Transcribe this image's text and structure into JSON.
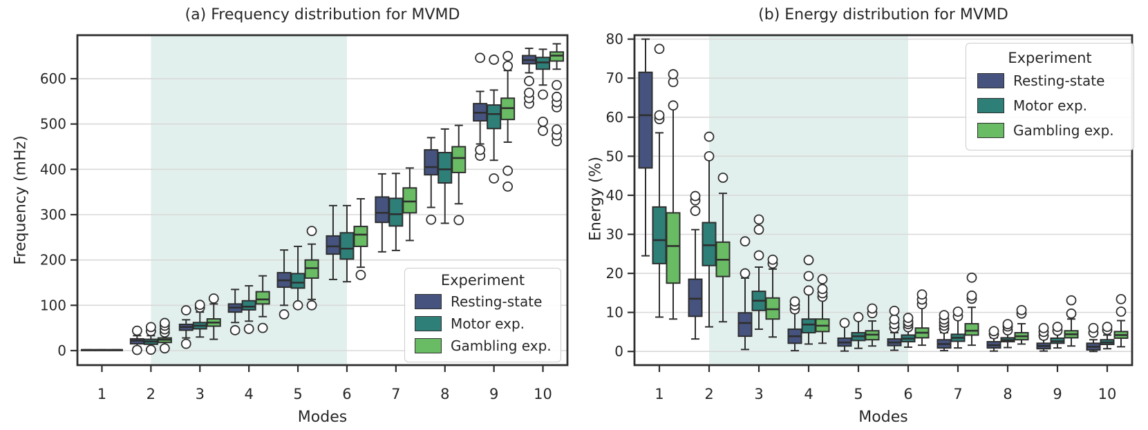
{
  "figure": {
    "legend_title": "Experiment",
    "series": [
      {
        "name": "Resting-state",
        "color": "#46537e"
      },
      {
        "name": "Motor exp.",
        "color": "#2d7f78"
      },
      {
        "name": "Gambling exp.",
        "color": "#69bb64"
      }
    ],
    "band_color": "#e2f0ed",
    "grid_color": "#d8d8d8",
    "edge_color": "#2e2e2e",
    "flier_fill": "#ffffff"
  },
  "chart_data": [
    {
      "type": "box",
      "title": "(a) Frequency distribution for MVMD",
      "xlabel": "Modes",
      "ylabel": "Frequency  (mHz)",
      "categories": [
        "1",
        "2",
        "3",
        "4",
        "5",
        "6",
        "7",
        "8",
        "9",
        "10"
      ],
      "yticks": [
        0,
        100,
        200,
        300,
        400,
        500,
        600
      ],
      "ylim": [
        -32,
        696
      ],
      "band_x": [
        1.5,
        5.5
      ],
      "grid": true,
      "legend_loc": "lower right",
      "series": [
        {
          "name": "Resting-state",
          "boxes": [
            [
              1,
              1,
              1.5,
              2,
              2
            ],
            [
              8,
              15,
              22,
              26,
              33
            ],
            [
              28,
              45,
              52,
              58,
              68
            ],
            [
              62,
              85,
              95,
              103,
              135
            ],
            [
              100,
              140,
              155,
              172,
              222
            ],
            [
              157,
              213,
              230,
              253,
              320
            ],
            [
              218,
              283,
              304,
              339,
              390
            ],
            [
              316,
              388,
              405,
              443,
              470
            ],
            [
              456,
              507,
              525,
              545,
              572
            ],
            [
              613,
              633,
              641,
              651,
              667
            ]
          ],
          "fliers": [
            [],
            [
              1.5,
              44
            ],
            [
              15,
              89
            ],
            [
              45
            ],
            [
              80
            ],
            [],
            [],
            [
              289
            ],
            [
              430,
              443,
              646
            ],
            [
              545,
              557,
              569,
              595
            ]
          ]
        },
        {
          "name": "Motor exp.",
          "boxes": [
            [
              1,
              1,
              1.5,
              2,
              2
            ],
            [
              7,
              14,
              20,
              25,
              33
            ],
            [
              30,
              48,
              55,
              62,
              85
            ],
            [
              65,
              90,
              97,
              110,
              143
            ],
            [
              103,
              138,
              150,
              170,
              230
            ],
            [
              152,
              202,
              225,
              260,
              320
            ],
            [
              221,
              275,
              301,
              336,
              391
            ],
            [
              281,
              370,
              400,
              437,
              489
            ],
            [
              420,
              490,
              522,
              542,
              575
            ],
            [
              586,
              621,
              636,
              647,
              665
            ]
          ],
          "fliers": [
            [],
            [
              2,
              43,
              52
            ],
            [
              95,
              101
            ],
            [
              48
            ],
            [
              100
            ],
            [],
            [],
            [],
            [
              380,
              642
            ],
            [
              485,
              505,
              565
            ]
          ]
        },
        {
          "name": "Gambling exp.",
          "boxes": [
            [
              1,
              1,
              1.5,
              2,
              2
            ],
            [
              10,
              18,
              24,
              28,
              36
            ],
            [
              25,
              54,
              62,
              70,
              103
            ],
            [
              75,
              103,
              113,
              130,
              165
            ],
            [
              113,
              160,
              182,
              200,
              235
            ],
            [
              184,
              230,
              256,
              274,
              335
            ],
            [
              243,
              304,
              329,
              359,
              403
            ],
            [
              324,
              393,
              425,
              450,
              497
            ],
            [
              460,
              510,
              535,
              557,
              618
            ],
            [
              621,
              639,
              651,
              659,
              677
            ]
          ],
          "fliers": [
            [],
            [
              5,
              40,
              47,
              55,
              61
            ],
            [
              115
            ],
            [
              50
            ],
            [
              100,
              264
            ],
            [
              167
            ],
            [],
            [
              288
            ],
            [
              362,
              397,
              628,
              650
            ],
            [
              462,
              475,
              488,
              537,
              548,
              560,
              586
            ]
          ]
        }
      ]
    },
    {
      "type": "box",
      "title": "(b) Energy distribution for MVMD",
      "xlabel": "Modes",
      "ylabel": "Energy (%)",
      "categories": [
        "1",
        "2",
        "3",
        "4",
        "5",
        "6",
        "7",
        "8",
        "9",
        "10"
      ],
      "yticks": [
        0,
        10,
        20,
        30,
        40,
        50,
        60,
        70,
        80
      ],
      "ylim": [
        -3.5,
        81
      ],
      "band_x": [
        1.5,
        5.5
      ],
      "grid": true,
      "legend_loc": "upper right",
      "series": [
        {
          "name": "Resting-state",
          "boxes": [
            [
              24.5,
              47,
              60.5,
              71.5,
              80
            ],
            [
              3.2,
              9,
              13.5,
              18.5,
              31.2
            ],
            [
              0.5,
              3.9,
              7.3,
              9.9,
              18.8
            ],
            [
              0.2,
              2.1,
              3.9,
              5.7,
              10
            ],
            [
              0.1,
              1.4,
              2.3,
              3.4,
              6.6
            ],
            [
              0.3,
              1.5,
              2.3,
              3.2,
              4.8
            ],
            [
              0.2,
              0.9,
              1.9,
              3,
              4.8
            ],
            [
              0.1,
              0.9,
              1.6,
              2.5,
              3.5
            ],
            [
              0.1,
              0.7,
              1.4,
              2.1,
              3.2
            ],
            [
              0,
              0.4,
              1.2,
              2.1,
              3
            ]
          ],
          "fliers": [
            [],
            [
              36,
              38.7,
              39.8
            ],
            [
              20,
              28.2
            ],
            [
              10.8,
              11.8,
              12.8
            ],
            [
              7.3
            ],
            [
              6,
              7,
              8.2,
              10.4
            ],
            [
              5.8,
              6.6,
              7.4,
              8.2,
              9.3
            ],
            [
              4.4,
              5.2
            ],
            [
              4,
              5,
              6
            ],
            [
              4.8,
              6
            ]
          ]
        },
        {
          "name": "Motor exp.",
          "boxes": [
            [
              8.8,
              22.5,
              28.5,
              37,
              56
            ],
            [
              6.3,
              22,
              27.2,
              33,
              49.3
            ],
            [
              5.7,
              10.5,
              13,
              15.4,
              21.6
            ],
            [
              1.9,
              4.8,
              6.9,
              8.3,
              15.2
            ],
            [
              0.8,
              2.8,
              3.9,
              4.8,
              8.3
            ],
            [
              1.1,
              2.5,
              3.3,
              4.2,
              5.8
            ],
            [
              0.9,
              2.6,
              3.5,
              4.4,
              8.3
            ],
            [
              1,
              2.5,
              2.9,
              3.5,
              4.8
            ],
            [
              0.9,
              2.1,
              2.6,
              3.4,
              4.6
            ],
            [
              0.7,
              1.8,
              2.3,
              3,
              4.2
            ]
          ],
          "fliers": [
            [
              59.5,
              60.5,
              77.5
            ],
            [
              50,
              55
            ],
            [
              24.6,
              31.2,
              33.8
            ],
            [
              15.6,
              19.3,
              23.4
            ],
            [
              8.8
            ],
            [
              6.2,
              7,
              7.6,
              8.6
            ],
            [
              9,
              10.2
            ],
            [
              5.4,
              6.4,
              7
            ],
            [
              5.3,
              6.3
            ],
            [
              5.5,
              6.3
            ]
          ]
        },
        {
          "name": "Gambling exp.",
          "boxes": [
            [
              8.3,
              17.5,
              27,
              35.5,
              63
            ],
            [
              7.6,
              19.2,
              23.5,
              28,
              40.5
            ],
            [
              3.7,
              8.3,
              10.8,
              13.7,
              21.1
            ],
            [
              2.1,
              5.1,
              6.6,
              8.3,
              13.5
            ],
            [
              1.4,
              3,
              4.3,
              5.3,
              7.8
            ],
            [
              1.6,
              3.5,
              4.8,
              6,
              11.5
            ],
            [
              1.6,
              4.2,
              5.3,
              7.1,
              11.3
            ],
            [
              1.9,
              3,
              3.9,
              4.8,
              7.1
            ],
            [
              1.4,
              3.5,
              4.4,
              5.3,
              8.3
            ],
            [
              1.2,
              3.4,
              4.2,
              5.1,
              7.9
            ]
          ],
          "fliers": [
            [
              63,
              69,
              71
            ],
            [
              44.5
            ],
            [
              22.5,
              23.5
            ],
            [
              14,
              14.9,
              16,
              18.5
            ],
            [
              9.8,
              11
            ],
            [
              12.1,
              13.3,
              14.6
            ],
            [
              13.5,
              14.3,
              18.9
            ],
            [
              9.7,
              10.6
            ],
            [
              9.7,
              13.1
            ],
            [
              10.2,
              13.4
            ]
          ]
        }
      ]
    }
  ]
}
